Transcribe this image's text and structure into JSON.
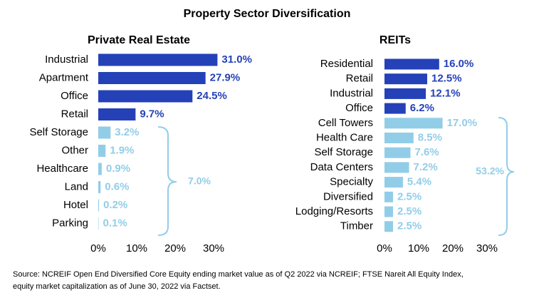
{
  "title": "Property Sector Diversification",
  "source": [
    "Source: NCREIF Open End Diversified Core Equity ending market value as of Q2 2022 via NCREIF; FTSE Nareit All Equity Index,",
    "equity market capitalization as of June 30, 2022 via Factset."
  ],
  "chart_data": [
    {
      "type": "bar",
      "orientation": "horizontal",
      "title": "Private Real Estate",
      "categories": [
        "Industrial",
        "Apartment",
        "Office",
        "Retail",
        "Self Storage",
        "Other",
        "Healthcare",
        "Land",
        "Hotel",
        "Parking"
      ],
      "values": [
        31.0,
        27.9,
        24.5,
        9.7,
        3.2,
        1.9,
        0.9,
        0.6,
        0.2,
        0.1
      ],
      "value_labels": [
        "31.0%",
        "27.9%",
        "24.5%",
        "9.7%",
        "3.2%",
        "1.9%",
        "0.9%",
        "0.6%",
        "0.2%",
        "0.1%"
      ],
      "colors": [
        "#2541b8",
        "#2541b8",
        "#2541b8",
        "#2541b8",
        "#92cde8",
        "#92cde8",
        "#92cde8",
        "#92cde8",
        "#92cde8",
        "#92cde8"
      ],
      "xlim": [
        0,
        30
      ],
      "xticks": [
        {
          "value": 0,
          "label": "0%"
        },
        {
          "value": 10,
          "label": "10%"
        },
        {
          "value": 20,
          "label": "20%"
        },
        {
          "value": 30,
          "label": "30%"
        }
      ],
      "annotation": "7.0%"
    },
    {
      "type": "bar",
      "orientation": "horizontal",
      "title": "REITs",
      "categories": [
        "Residential",
        "Retail",
        "Industrial",
        "Office",
        "Cell Towers",
        "Health Care",
        "Self Storage",
        "Data Centers",
        "Specialty",
        "Diversified",
        "Lodging/Resorts",
        "Timber"
      ],
      "values": [
        16.0,
        12.5,
        12.1,
        6.2,
        17.0,
        8.5,
        7.6,
        7.2,
        5.4,
        2.5,
        2.5,
        2.5
      ],
      "value_labels": [
        "16.0%",
        "12.5%",
        "12.1%",
        "6.2%",
        "17.0%",
        "8.5%",
        "7.6%",
        "7.2%",
        "5.4%",
        "2.5%",
        "2.5%",
        "2.5%"
      ],
      "colors": [
        "#2541b8",
        "#2541b8",
        "#2541b8",
        "#2541b8",
        "#92cde8",
        "#92cde8",
        "#92cde8",
        "#92cde8",
        "#92cde8",
        "#92cde8",
        "#92cde8",
        "#92cde8"
      ],
      "xlim": [
        0,
        30
      ],
      "xticks": [
        {
          "value": 0,
          "label": "0%"
        },
        {
          "value": 10,
          "label": "10%"
        },
        {
          "value": 20,
          "label": "20%"
        },
        {
          "value": 30,
          "label": "30%"
        }
      ],
      "annotation": "53.2%"
    }
  ]
}
